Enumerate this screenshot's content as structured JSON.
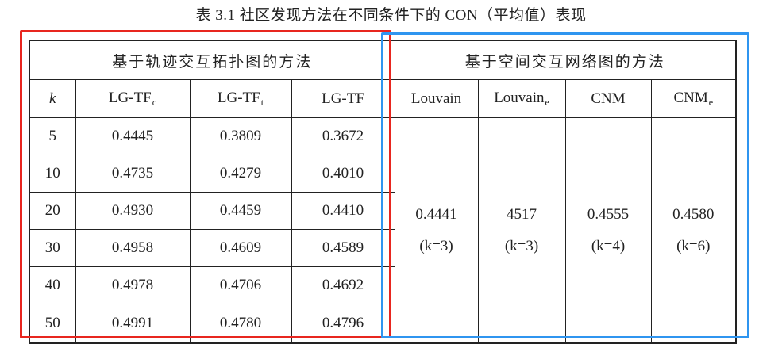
{
  "caption": "表 3.1 社区发现方法在不同条件下的 CON（平均值）表现",
  "groups": {
    "left": "基于轨迹交互拓扑图的方法",
    "right": "基于空间交互网络图的方法"
  },
  "headers": {
    "k": "k",
    "lgtfc_main": "LG-TF",
    "lgtfc_sub": "c",
    "lgtft_main": "LG-TF",
    "lgtft_sub": "t",
    "lgtf": "LG-TF",
    "louvain": "Louvain",
    "louvaine_main": "Louvain",
    "louvaine_sub": "e",
    "cnm": "CNM",
    "cnme_main": "CNM",
    "cnme_sub": "e"
  },
  "rows": [
    {
      "k": "5",
      "lgtfc": "0.4445",
      "lgtft": "0.3809",
      "lgtf": "0.3672"
    },
    {
      "k": "10",
      "lgtfc": "0.4735",
      "lgtft": "0.4279",
      "lgtf": "0.4010"
    },
    {
      "k": "20",
      "lgtfc": "0.4930",
      "lgtft": "0.4459",
      "lgtf": "0.4410"
    },
    {
      "k": "30",
      "lgtfc": "0.4958",
      "lgtft": "0.4609",
      "lgtf": "0.4589"
    },
    {
      "k": "40",
      "lgtfc": "0.4978",
      "lgtft": "0.4706",
      "lgtf": "0.4692"
    },
    {
      "k": "50",
      "lgtfc": "0.4991",
      "lgtft": "0.4780",
      "lgtf": "0.4796"
    }
  ],
  "merged": {
    "louvain": {
      "value": "0.4441",
      "k": "(k=3)"
    },
    "louvaine": {
      "value": "4517",
      "k": "(k=3)"
    },
    "cnm": {
      "value": "0.4555",
      "k": "(k=4)"
    },
    "cnme": {
      "value": "0.4580",
      "k": "(k=6)"
    }
  },
  "highlight_colors": {
    "left_group": "#e8261f",
    "right_group": "#2f95f0"
  }
}
